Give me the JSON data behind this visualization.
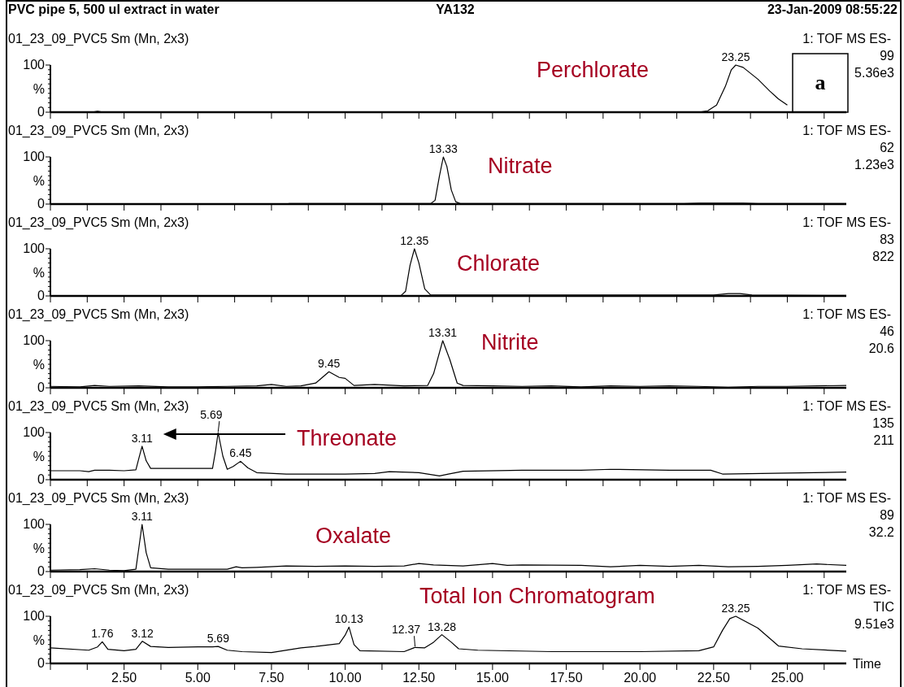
{
  "chart_data": [
    {
      "type": "other",
      "title": "PVC pipe 5, 500 ul extract in water",
      "annotations": [
        "YA132",
        "23-Jan-2009 08:55:22"
      ]
    },
    {
      "type": "line",
      "title": "01_23_09_PVC5 Sm (Mn, 2x3)",
      "subtitle": "Perchlorate",
      "ylabel": "%",
      "xlim": [
        0,
        27
      ],
      "ylim": [
        0,
        100
      ],
      "tick_labels": "y",
      "yticks": [
        {
          "value": 0,
          "label": "0"
        },
        {
          "value": 10,
          "label": null
        },
        {
          "value": 20,
          "label": null
        },
        {
          "value": 30,
          "label": null
        },
        {
          "value": 40,
          "label": null
        },
        {
          "value": 50,
          "label": null
        },
        {
          "value": 60,
          "label": null
        },
        {
          "value": 70,
          "label": null
        },
        {
          "value": 80,
          "label": null
        },
        {
          "value": 90,
          "label": null
        },
        {
          "value": 100,
          "label": "100"
        }
      ],
      "xticks": [
        {
          "value": 0,
          "label": null
        },
        {
          "value": 1.25,
          "label": null
        },
        {
          "value": 2.5,
          "label": null
        },
        {
          "value": 3.75,
          "label": null
        },
        {
          "value": 5,
          "label": null
        },
        {
          "value": 6.25,
          "label": null
        },
        {
          "value": 7.5,
          "label": null
        },
        {
          "value": 8.75,
          "label": null
        },
        {
          "value": 10,
          "label": null
        },
        {
          "value": 11.25,
          "label": null
        },
        {
          "value": 12.5,
          "label": null
        },
        {
          "value": 13.75,
          "label": null
        },
        {
          "value": 15,
          "label": null
        },
        {
          "value": 16.25,
          "label": null
        },
        {
          "value": 17.5,
          "label": null
        },
        {
          "value": 18.75,
          "label": null
        },
        {
          "value": 20,
          "label": null
        },
        {
          "value": 21.25,
          "label": null
        },
        {
          "value": 22.5,
          "label": null
        },
        {
          "value": 23.75,
          "label": null
        },
        {
          "value": 25,
          "label": null
        },
        {
          "value": 26.25,
          "label": null
        }
      ],
      "annotations": [
        "1: TOF MS ES-",
        "99",
        "5.36e3",
        "a",
        {
          "text": "23.25",
          "x": 23.25,
          "y": 100
        }
      ],
      "series": [
        {
          "color": "#000000",
          "x": [
            0,
            1.4,
            1.6,
            1.8,
            22,
            22.3,
            22.6,
            22.9,
            23.1,
            23.25,
            23.5,
            24,
            24.4,
            24.7,
            25
          ],
          "values": [
            0,
            0,
            2,
            0,
            0,
            3,
            15,
            55,
            90,
            100,
            95,
            70,
            45,
            28,
            15
          ]
        }
      ]
    },
    {
      "type": "line",
      "title": "01_23_09_PVC5 Sm (Mn, 2x3)",
      "subtitle": "Nitrate",
      "ylabel": "%",
      "xlim": [
        0,
        27
      ],
      "ylim": [
        0,
        100
      ],
      "tick_labels": "y",
      "yticks": [
        {
          "value": 0,
          "label": "0"
        },
        {
          "value": 10,
          "label": null
        },
        {
          "value": 20,
          "label": null
        },
        {
          "value": 30,
          "label": null
        },
        {
          "value": 40,
          "label": null
        },
        {
          "value": 50,
          "label": null
        },
        {
          "value": 60,
          "label": null
        },
        {
          "value": 70,
          "label": null
        },
        {
          "value": 80,
          "label": null
        },
        {
          "value": 90,
          "label": null
        },
        {
          "value": 100,
          "label": "100"
        }
      ],
      "xticks": [
        {
          "value": 0,
          "label": null
        },
        {
          "value": 1.25,
          "label": null
        },
        {
          "value": 2.5,
          "label": null
        },
        {
          "value": 3.75,
          "label": null
        },
        {
          "value": 5,
          "label": null
        },
        {
          "value": 6.25,
          "label": null
        },
        {
          "value": 7.5,
          "label": null
        },
        {
          "value": 8.75,
          "label": null
        },
        {
          "value": 10,
          "label": null
        },
        {
          "value": 11.25,
          "label": null
        },
        {
          "value": 12.5,
          "label": null
        },
        {
          "value": 13.75,
          "label": null
        },
        {
          "value": 15,
          "label": null
        },
        {
          "value": 16.25,
          "label": null
        },
        {
          "value": 17.5,
          "label": null
        },
        {
          "value": 18.75,
          "label": null
        },
        {
          "value": 20,
          "label": null
        },
        {
          "value": 21.25,
          "label": null
        },
        {
          "value": 22.5,
          "label": null
        },
        {
          "value": 23.75,
          "label": null
        },
        {
          "value": 25,
          "label": null
        },
        {
          "value": 26.25,
          "label": null
        }
      ],
      "annotations": [
        "1: TOF MS ES-",
        "62",
        "1.23e3",
        {
          "text": "13.33",
          "x": 13.33,
          "y": 100
        }
      ],
      "series": [
        {
          "color": "#000000",
          "x": [
            0,
            8,
            8.1,
            12,
            12.9,
            13.05,
            13.2,
            13.33,
            13.45,
            13.6,
            13.75,
            13.9,
            20,
            21.5,
            22,
            23.5,
            24,
            27
          ],
          "values": [
            0,
            0,
            1,
            1,
            1,
            8,
            60,
            100,
            80,
            30,
            5,
            1,
            1,
            1,
            2,
            2,
            1,
            1
          ]
        }
      ]
    },
    {
      "type": "line",
      "title": "01_23_09_PVC5 Sm (Mn, 2x3)",
      "subtitle": "Chlorate",
      "ylabel": "%",
      "xlim": [
        0,
        27
      ],
      "ylim": [
        0,
        100
      ],
      "tick_labels": "y",
      "yticks": [
        {
          "value": 0,
          "label": "0"
        },
        {
          "value": 10,
          "label": null
        },
        {
          "value": 20,
          "label": null
        },
        {
          "value": 30,
          "label": null
        },
        {
          "value": 40,
          "label": null
        },
        {
          "value": 50,
          "label": null
        },
        {
          "value": 60,
          "label": null
        },
        {
          "value": 70,
          "label": null
        },
        {
          "value": 80,
          "label": null
        },
        {
          "value": 90,
          "label": null
        },
        {
          "value": 100,
          "label": "100"
        }
      ],
      "xticks": [
        {
          "value": 0,
          "label": null
        },
        {
          "value": 1.25,
          "label": null
        },
        {
          "value": 2.5,
          "label": null
        },
        {
          "value": 3.75,
          "label": null
        },
        {
          "value": 5,
          "label": null
        },
        {
          "value": 6.25,
          "label": null
        },
        {
          "value": 7.5,
          "label": null
        },
        {
          "value": 8.75,
          "label": null
        },
        {
          "value": 10,
          "label": null
        },
        {
          "value": 11.25,
          "label": null
        },
        {
          "value": 12.5,
          "label": null
        },
        {
          "value": 13.75,
          "label": null
        },
        {
          "value": 15,
          "label": null
        },
        {
          "value": 16.25,
          "label": null
        },
        {
          "value": 17.5,
          "label": null
        },
        {
          "value": 18.75,
          "label": null
        },
        {
          "value": 20,
          "label": null
        },
        {
          "value": 21.25,
          "label": null
        },
        {
          "value": 22.5,
          "label": null
        },
        {
          "value": 23.75,
          "label": null
        },
        {
          "value": 25,
          "label": null
        },
        {
          "value": 26.25,
          "label": null
        }
      ],
      "annotations": [
        "1: TOF MS ES-",
        "83",
        "822",
        {
          "text": "12.35",
          "x": 12.35,
          "y": 100
        }
      ],
      "series": [
        {
          "color": "#000000",
          "x": [
            0,
            11.9,
            12.05,
            12.2,
            12.35,
            12.5,
            12.7,
            12.9,
            22.5,
            23,
            23.4,
            23.8,
            27
          ],
          "values": [
            0,
            1,
            10,
            65,
            100,
            70,
            15,
            2,
            2,
            5,
            5,
            2,
            1
          ]
        }
      ]
    },
    {
      "type": "line",
      "title": "01_23_09_PVC5 Sm (Mn, 2x3)",
      "subtitle": "Nitrite",
      "ylabel": "%",
      "xlim": [
        0,
        27
      ],
      "ylim": [
        0,
        100
      ],
      "tick_labels": "y",
      "yticks": [
        {
          "value": 0,
          "label": "0"
        },
        {
          "value": 10,
          "label": null
        },
        {
          "value": 20,
          "label": null
        },
        {
          "value": 30,
          "label": null
        },
        {
          "value": 40,
          "label": null
        },
        {
          "value": 50,
          "label": null
        },
        {
          "value": 60,
          "label": null
        },
        {
          "value": 70,
          "label": null
        },
        {
          "value": 80,
          "label": null
        },
        {
          "value": 90,
          "label": null
        },
        {
          "value": 100,
          "label": "100"
        }
      ],
      "xticks": [
        {
          "value": 0,
          "label": null
        },
        {
          "value": 1.25,
          "label": null
        },
        {
          "value": 2.5,
          "label": null
        },
        {
          "value": 3.75,
          "label": null
        },
        {
          "value": 5,
          "label": null
        },
        {
          "value": 6.25,
          "label": null
        },
        {
          "value": 7.5,
          "label": null
        },
        {
          "value": 8.75,
          "label": null
        },
        {
          "value": 10,
          "label": null
        },
        {
          "value": 11.25,
          "label": null
        },
        {
          "value": 12.5,
          "label": null
        },
        {
          "value": 13.75,
          "label": null
        },
        {
          "value": 15,
          "label": null
        },
        {
          "value": 16.25,
          "label": null
        },
        {
          "value": 17.5,
          "label": null
        },
        {
          "value": 18.75,
          "label": null
        },
        {
          "value": 20,
          "label": null
        },
        {
          "value": 21.25,
          "label": null
        },
        {
          "value": 22.5,
          "label": null
        },
        {
          "value": 23.75,
          "label": null
        },
        {
          "value": 25,
          "label": null
        },
        {
          "value": 26.25,
          "label": null
        }
      ],
      "annotations": [
        "1: TOF MS ES-",
        "46",
        "20.6",
        {
          "text": "9.45",
          "x": 9.45,
          "y": 34
        },
        {
          "text": "13.31",
          "x": 13.31,
          "y": 100
        }
      ],
      "series": [
        {
          "color": "#000000",
          "x": [
            0,
            1,
            1.5,
            2,
            3,
            4,
            5,
            6,
            7,
            7.5,
            8,
            8.5,
            9,
            9.45,
            9.8,
            10,
            10.3,
            11,
            12,
            12.8,
            13,
            13.31,
            13.55,
            13.8,
            14,
            15,
            16,
            17,
            18,
            19,
            20,
            21,
            22,
            23,
            24,
            25,
            27
          ],
          "values": [
            3,
            2,
            5,
            3,
            4,
            2,
            2,
            3,
            4,
            7,
            3,
            4,
            10,
            34,
            22,
            20,
            5,
            7,
            4,
            5,
            30,
            100,
            60,
            10,
            5,
            4,
            3,
            4,
            2,
            4,
            3,
            4,
            3,
            1,
            3,
            3,
            5
          ]
        }
      ]
    },
    {
      "type": "line",
      "title": "01_23_09_PVC5 Sm (Mn, 2x3)",
      "subtitle": "Threonate",
      "ylabel": "%",
      "xlim": [
        0,
        27
      ],
      "ylim": [
        0,
        100
      ],
      "tick_labels": "y",
      "yticks": [
        {
          "value": 0,
          "label": "0"
        },
        {
          "value": 10,
          "label": null
        },
        {
          "value": 20,
          "label": null
        },
        {
          "value": 30,
          "label": null
        },
        {
          "value": 40,
          "label": null
        },
        {
          "value": 50,
          "label": null
        },
        {
          "value": 60,
          "label": null
        },
        {
          "value": 70,
          "label": null
        },
        {
          "value": 80,
          "label": null
        },
        {
          "value": 90,
          "label": null
        },
        {
          "value": 100,
          "label": "100"
        }
      ],
      "xticks": [
        {
          "value": 0,
          "label": null
        },
        {
          "value": 1.25,
          "label": null
        },
        {
          "value": 2.5,
          "label": null
        },
        {
          "value": 3.75,
          "label": null
        },
        {
          "value": 5,
          "label": null
        },
        {
          "value": 6.25,
          "label": null
        },
        {
          "value": 7.5,
          "label": null
        },
        {
          "value": 8.75,
          "label": null
        },
        {
          "value": 10,
          "label": null
        },
        {
          "value": 11.25,
          "label": null
        },
        {
          "value": 12.5,
          "label": null
        },
        {
          "value": 13.75,
          "label": null
        },
        {
          "value": 15,
          "label": null
        },
        {
          "value": 16.25,
          "label": null
        },
        {
          "value": 17.5,
          "label": null
        },
        {
          "value": 18.75,
          "label": null
        },
        {
          "value": 20,
          "label": null
        },
        {
          "value": 21.25,
          "label": null
        },
        {
          "value": 22.5,
          "label": null
        },
        {
          "value": 23.75,
          "label": null
        },
        {
          "value": 25,
          "label": null
        },
        {
          "value": 26.25,
          "label": null
        }
      ],
      "annotations": [
        "1: TOF MS ES-",
        "135",
        "211",
        {
          "text": "3.11",
          "x": 3.11,
          "y": 71
        },
        {
          "text": "5.69",
          "x": 5.69,
          "y": 100
        },
        {
          "text": "6.45",
          "x": 6.45,
          "y": 39
        }
      ],
      "series": [
        {
          "color": "#000000",
          "x": [
            0,
            1,
            1.3,
            1.5,
            2,
            2.5,
            2.9,
            3,
            3.11,
            3.25,
            3.4,
            4,
            5,
            5.5,
            5.6,
            5.69,
            5.85,
            6,
            6.2,
            6.45,
            6.7,
            7,
            8,
            10,
            11,
            11.5,
            12.5,
            13.2,
            13.5,
            14,
            16,
            18,
            19,
            21,
            22.4,
            22.8,
            25,
            27
          ],
          "values": [
            19,
            19,
            17,
            20,
            20,
            19,
            21,
            45,
            71,
            40,
            24,
            24,
            24,
            24,
            60,
            100,
            50,
            22,
            28,
            39,
            25,
            15,
            12,
            12,
            13,
            17,
            15,
            8,
            12,
            18,
            20,
            20,
            22,
            20,
            20,
            12,
            14,
            16
          ]
        }
      ]
    },
    {
      "type": "line",
      "title": "01_23_09_PVC5 Sm (Mn, 2x3)",
      "subtitle": "Oxalate",
      "ylabel": "%",
      "xlim": [
        0,
        27
      ],
      "ylim": [
        0,
        100
      ],
      "tick_labels": "y",
      "yticks": [
        {
          "value": 0,
          "label": "0"
        },
        {
          "value": 10,
          "label": null
        },
        {
          "value": 20,
          "label": null
        },
        {
          "value": 30,
          "label": null
        },
        {
          "value": 40,
          "label": null
        },
        {
          "value": 50,
          "label": null
        },
        {
          "value": 60,
          "label": null
        },
        {
          "value": 70,
          "label": null
        },
        {
          "value": 80,
          "label": null
        },
        {
          "value": 90,
          "label": null
        },
        {
          "value": 100,
          "label": "100"
        }
      ],
      "xticks": [
        {
          "value": 0,
          "label": null
        },
        {
          "value": 1.25,
          "label": null
        },
        {
          "value": 2.5,
          "label": null
        },
        {
          "value": 3.75,
          "label": null
        },
        {
          "value": 5,
          "label": null
        },
        {
          "value": 6.25,
          "label": null
        },
        {
          "value": 7.5,
          "label": null
        },
        {
          "value": 8.75,
          "label": null
        },
        {
          "value": 10,
          "label": null
        },
        {
          "value": 11.25,
          "label": null
        },
        {
          "value": 12.5,
          "label": null
        },
        {
          "value": 13.75,
          "label": null
        },
        {
          "value": 15,
          "label": null
        },
        {
          "value": 16.25,
          "label": null
        },
        {
          "value": 17.5,
          "label": null
        },
        {
          "value": 18.75,
          "label": null
        },
        {
          "value": 20,
          "label": null
        },
        {
          "value": 21.25,
          "label": null
        },
        {
          "value": 22.5,
          "label": null
        },
        {
          "value": 23.75,
          "label": null
        },
        {
          "value": 25,
          "label": null
        },
        {
          "value": 26.25,
          "label": null
        }
      ],
      "annotations": [
        "1: TOF MS ES-",
        "89",
        "32.2",
        {
          "text": "3.11",
          "x": 3.11,
          "y": 100
        }
      ],
      "series": [
        {
          "color": "#000000",
          "x": [
            0,
            1,
            1.5,
            2,
            2.5,
            2.9,
            3,
            3.11,
            3.25,
            3.4,
            4,
            5,
            6,
            6.3,
            6.5,
            7,
            8,
            9,
            10,
            11,
            12,
            12.5,
            13,
            14,
            15,
            15.5,
            16,
            18,
            19,
            20,
            21,
            22,
            23,
            24,
            25,
            26,
            27
          ],
          "values": [
            3,
            4,
            6,
            3,
            2,
            5,
            50,
            100,
            40,
            8,
            5,
            5,
            5,
            10,
            8,
            9,
            12,
            11,
            12,
            11,
            12,
            17,
            14,
            12,
            17,
            13,
            14,
            13,
            10,
            13,
            11,
            13,
            10,
            11,
            13,
            16,
            13
          ]
        }
      ]
    },
    {
      "type": "line",
      "title": "01_23_09_PVC5 Sm (Mn, 2x3)",
      "subtitle": "Total Ion Chromatogram",
      "ylabel": "%",
      "xlabel": "Time",
      "xlim": [
        0,
        27
      ],
      "ylim": [
        0,
        100
      ],
      "yticks": [
        {
          "value": 0,
          "label": "0"
        },
        {
          "value": 10,
          "label": null
        },
        {
          "value": 20,
          "label": null
        },
        {
          "value": 30,
          "label": null
        },
        {
          "value": 40,
          "label": null
        },
        {
          "value": 50,
          "label": null
        },
        {
          "value": 60,
          "label": null
        },
        {
          "value": 70,
          "label": null
        },
        {
          "value": 80,
          "label": null
        },
        {
          "value": 90,
          "label": null
        },
        {
          "value": 100,
          "label": "100"
        }
      ],
      "xticks": [
        {
          "value": 0,
          "label": null
        },
        {
          "value": 1.25,
          "label": null
        },
        {
          "value": 2.5,
          "label": "2.50"
        },
        {
          "value": 3.75,
          "label": null
        },
        {
          "value": 5,
          "label": "5.00"
        },
        {
          "value": 6.25,
          "label": null
        },
        {
          "value": 7.5,
          "label": "7.50"
        },
        {
          "value": 8.75,
          "label": null
        },
        {
          "value": 10,
          "label": "10.00"
        },
        {
          "value": 11.25,
          "label": null
        },
        {
          "value": 12.5,
          "label": "12.50"
        },
        {
          "value": 13.75,
          "label": null
        },
        {
          "value": 15,
          "label": "15.00"
        },
        {
          "value": 16.25,
          "label": null
        },
        {
          "value": 17.5,
          "label": "17.50"
        },
        {
          "value": 18.75,
          "label": null
        },
        {
          "value": 20,
          "label": "20.00"
        },
        {
          "value": 21.25,
          "label": null
        },
        {
          "value": 22.5,
          "label": "22.50"
        },
        {
          "value": 23.75,
          "label": null
        },
        {
          "value": 25,
          "label": "25.00"
        },
        {
          "value": 26.25,
          "label": null
        }
      ],
      "annotations": [
        "1: TOF MS ES-",
        "TIC",
        "9.51e3",
        {
          "text": "1.76",
          "x": 1.76,
          "y": 46
        },
        {
          "text": "3.12",
          "x": 3.12,
          "y": 47
        },
        {
          "text": "5.69",
          "x": 5.69,
          "y": 36
        },
        {
          "text": "10.13",
          "x": 10.13,
          "y": 77
        },
        {
          "text": "12.37",
          "x": 12.37,
          "y": 34
        },
        {
          "text": "13.28",
          "x": 13.28,
          "y": 61
        },
        {
          "text": "23.25",
          "x": 23.25,
          "y": 100
        }
      ],
      "series": [
        {
          "color": "#000000",
          "x": [
            0,
            1.3,
            1.6,
            1.76,
            1.95,
            2.5,
            2.9,
            3.12,
            3.4,
            4,
            5,
            5.5,
            5.69,
            6,
            6.5,
            7.5,
            8.5,
            9,
            9.8,
            10,
            10.13,
            10.3,
            10.5,
            12,
            12.37,
            12.7,
            13,
            13.28,
            13.6,
            13.85,
            14.5,
            17,
            20,
            22,
            22.5,
            22.8,
            23.05,
            23.25,
            24,
            24.7,
            25.5,
            27
          ],
          "values": [
            33,
            28,
            35,
            46,
            30,
            27,
            30,
            47,
            36,
            34,
            35,
            35,
            36,
            28,
            25,
            23,
            33,
            36,
            42,
            60,
            77,
            40,
            27,
            25,
            34,
            33,
            45,
            61,
            45,
            31,
            28,
            25,
            25,
            27,
            35,
            70,
            95,
            100,
            75,
            37,
            31,
            26
          ]
        }
      ]
    }
  ]
}
